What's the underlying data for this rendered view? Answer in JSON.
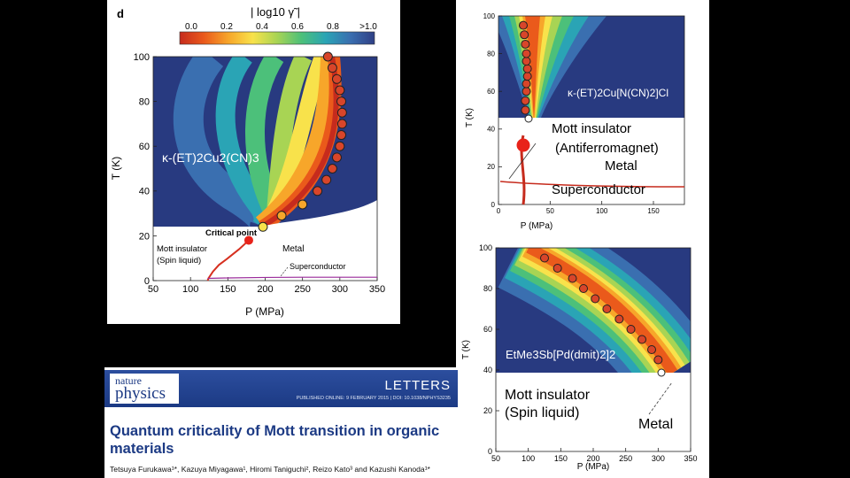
{
  "chart_data": [
    {
      "type": "heatmap",
      "panel_label": "d",
      "colorbar": {
        "title": "| log10 γ̃ |",
        "ticks": [
          "0.0",
          "0.2",
          "0.4",
          "0.6",
          "0.8",
          ">1.0"
        ],
        "colors": [
          "#c62b1d",
          "#ea5a1b",
          "#f7a62a",
          "#f8e24b",
          "#a8d454",
          "#4cc07a",
          "#2aa4b5",
          "#3a6fb0",
          "#2f3f85"
        ]
      },
      "xlabel": "P (MPa)",
      "ylabel": "T (K)",
      "xlim": [
        50,
        350
      ],
      "ylim": [
        0,
        100
      ],
      "xticks": [
        50,
        100,
        150,
        200,
        250,
        300,
        350
      ],
      "yticks": [
        0,
        20,
        40,
        60,
        80,
        100
      ],
      "material_label": "κ-(ET)2Cu2(CN)3",
      "critical_point": {
        "x": 178,
        "y": 18
      },
      "annotations": {
        "critical_point": "Critical point",
        "insulator": "Mott insulator",
        "insulator_sub": "(Spin liquid)",
        "metal": "Metal",
        "superconductor": "Superconductor"
      },
      "series": [
        {
          "name": "crossover points",
          "x": [
            197,
            222,
            250,
            270,
            282,
            290,
            296,
            300,
            302,
            303,
            303,
            302,
            300,
            296,
            290,
            284
          ],
          "y": [
            24,
            29,
            34,
            40,
            45,
            50,
            55,
            60,
            65,
            70,
            75,
            80,
            85,
            90,
            95,
            100
          ]
        },
        {
          "name": "first-order line",
          "x": [
            178,
            165,
            150,
            138,
            130,
            126,
            124,
            123
          ],
          "y": [
            18,
            14,
            10,
            7,
            4,
            2,
            1,
            0
          ]
        },
        {
          "name": "superconductor boundary",
          "x": [
            123,
            150,
            200,
            250,
            300,
            350
          ],
          "y": [
            1,
            1.2,
            1.4,
            1.5,
            1.5,
            1.5
          ]
        }
      ]
    },
    {
      "type": "heatmap",
      "xlabel": "P (MPa)",
      "ylabel": "T (K)",
      "xlim": [
        0,
        180
      ],
      "ylim": [
        0,
        100
      ],
      "xticks": [
        0,
        50,
        100,
        150
      ],
      "yticks": [
        0,
        20,
        40,
        60,
        80,
        100
      ],
      "material_label": "κ-(ET)2Cu[N(CN)2]Cl",
      "annotations": {
        "insulator": "Mott insulator",
        "insulator_sub": "(Antiferromagnet)",
        "metal": "Metal",
        "superconductor": "Superconductor"
      },
      "series": [
        {
          "name": "crossover points",
          "x": [
            26,
            26,
            27,
            27,
            28,
            28,
            27,
            27,
            26,
            25,
            24
          ],
          "y": [
            50,
            55,
            60,
            64,
            68,
            72,
            76,
            80,
            85,
            90,
            95
          ]
        },
        {
          "name": "critical endpoint",
          "x": [
            24
          ],
          "y": [
            38
          ]
        }
      ]
    },
    {
      "type": "heatmap",
      "xlabel": "P (MPa)",
      "ylabel": "T (K)",
      "xlim": [
        50,
        350
      ],
      "ylim": [
        0,
        100
      ],
      "xticks": [
        50,
        100,
        150,
        200,
        250,
        300,
        350
      ],
      "yticks": [
        0,
        20,
        40,
        60,
        80,
        100
      ],
      "material_label": "EtMe3Sb[Pd(dmit)2]2",
      "annotations": {
        "insulator": "Mott insulator",
        "insulator_sub": "(Spin liquid)",
        "metal": "Metal"
      },
      "series": [
        {
          "name": "crossover points",
          "x": [
            125,
            145,
            168,
            185,
            203,
            221,
            240,
            258,
            275,
            290,
            300
          ],
          "y": [
            95,
            90,
            85,
            80,
            75,
            70,
            65,
            60,
            55,
            50,
            45
          ]
        },
        {
          "name": "endpoint",
          "x": [
            305
          ],
          "y": [
            35
          ]
        }
      ]
    }
  ],
  "paper": {
    "journal_line1": "nature",
    "journal_line2": "physics",
    "article_type": "LETTERS",
    "publication_line": "PUBLISHED ONLINE: 9 FEBRUARY 2015 | DOI: 10.1038/NPHYS3235",
    "title": "Quantum criticality of Mott transition in organic materials",
    "authors": "Tetsuya Furukawa¹*, Kazuya Miyagawa¹, Hiromi Taniguchi², Reizo Kato³ and Kazushi Kanoda¹*"
  }
}
